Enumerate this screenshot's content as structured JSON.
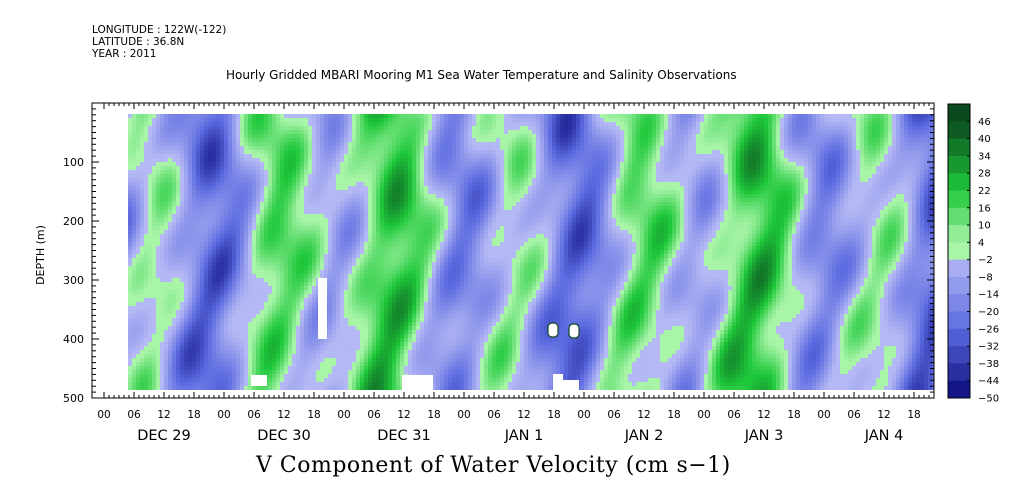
{
  "header": {
    "longitude": "LONGITUDE : 122W(-122)",
    "latitude": "LATITUDE : 36.8N",
    "year": "YEAR : 2011"
  },
  "colors": {
    "neg_max": "#0a0a7a",
    "neg_mid": "#5c6ae0",
    "neg_low": "#b4b8f4",
    "pos_low": "#a8f4a8",
    "pos_mid": "#1ec83a",
    "pos_max": "#0b4a1e",
    "missing": "#ffffff"
  },
  "chart_data": {
    "type": "heatmap",
    "title": "Hourly Gridded MBARI Mooring M1 Sea Water Temperature and Salinity Observations",
    "xlabel": "",
    "ylabel": "DEPTH (m)",
    "bottom_title": "V Component of Water Velocity (cm s−1)",
    "ylim": [
      500,
      0
    ],
    "y_ticks": [
      100,
      200,
      300,
      400,
      500
    ],
    "y_tick_labels": [
      "100",
      "200",
      "300",
      "400",
      "500"
    ],
    "x_hour_labels": [
      "00",
      "06",
      "12",
      "18",
      "00",
      "06",
      "12",
      "18",
      "00",
      "06",
      "12",
      "18",
      "00",
      "06",
      "12",
      "18",
      "00",
      "06",
      "12",
      "18",
      "00",
      "06",
      "12",
      "18",
      "00",
      "06",
      "12",
      "18"
    ],
    "x_day_labels": [
      "DEC 29",
      "DEC 30",
      "DEC 31",
      "JAN  1",
      "JAN  2",
      "JAN  3",
      "JAN  4"
    ],
    "colorbar": {
      "levels": [
        -50,
        -44,
        -38,
        -32,
        -26,
        -20,
        -14,
        -8,
        -2,
        4,
        10,
        16,
        22,
        28,
        34,
        40,
        46
      ],
      "labels": [
        "46",
        "40",
        "34",
        "28",
        "22",
        "16",
        "10",
        "4",
        "−2",
        "−8",
        "−14",
        "−20",
        "−26",
        "−32",
        "−38",
        "−44",
        "−50"
      ]
    }
  }
}
